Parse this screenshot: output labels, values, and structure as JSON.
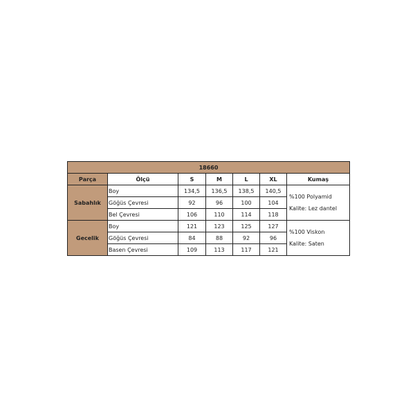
{
  "title": "18660",
  "headers": [
    "Parça",
    "Ölçü",
    "S",
    "M",
    "L",
    "XL",
    "Kumaş"
  ],
  "groups": [
    {
      "name": "Sabahlık",
      "fabric": "%100 Polyamid",
      "quality": "Kalite: Lez dantel",
      "rows": [
        {
          "label": "Boy",
          "values": [
            "134,5",
            "136,5",
            "138,5",
            "140,5"
          ]
        },
        {
          "label": "Göğüs Çevresi",
          "values": [
            "92",
            "96",
            "100",
            "104"
          ]
        },
        {
          "label": "Bel Çevresi",
          "values": [
            "106",
            "110",
            "114",
            "118"
          ]
        }
      ]
    },
    {
      "name": "Gecelik",
      "fabric": "%100 Viskon",
      "quality": "Kalite: Saten",
      "rows": [
        {
          "label": "Boy",
          "values": [
            "121",
            "123",
            "125",
            "127"
          ]
        },
        {
          "label": "Göğüs Çevresi",
          "values": [
            "84",
            "88",
            "92",
            "96"
          ]
        },
        {
          "label": "Basen Çevresi",
          "values": [
            "109",
            "113",
            "117",
            "121"
          ]
        }
      ]
    }
  ],
  "colors": {
    "header_bg": "#c19b7b"
  }
}
